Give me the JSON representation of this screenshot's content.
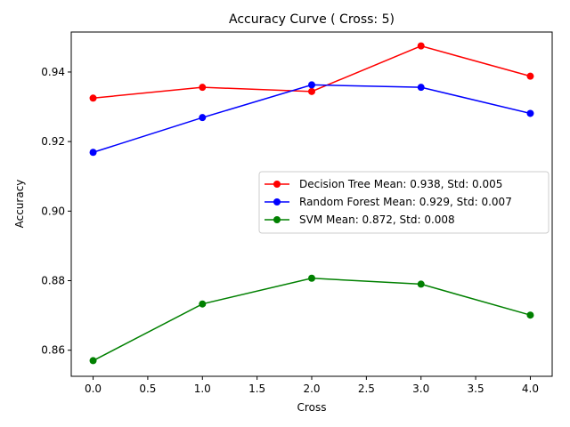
{
  "chart_data": {
    "type": "line",
    "title": "Accuracy Curve ( Cross: 5)",
    "xlabel": "Cross",
    "ylabel": "Accuracy",
    "x": [
      0,
      1,
      2,
      3,
      4
    ],
    "xlim": [
      -0.2,
      4.2
    ],
    "ylim": [
      0.8525,
      0.9515
    ],
    "xticks": [
      0.0,
      0.5,
      1.0,
      1.5,
      2.0,
      2.5,
      3.0,
      3.5,
      4.0
    ],
    "xtick_labels": [
      "0.0",
      "0.5",
      "1.0",
      "1.5",
      "2.0",
      "2.5",
      "3.0",
      "3.5",
      "4.0"
    ],
    "yticks": [
      0.86,
      0.88,
      0.9,
      0.92,
      0.94
    ],
    "ytick_labels": [
      "0.86",
      "0.88",
      "0.90",
      "0.92",
      "0.94"
    ],
    "grid": false,
    "legend_position": "center-right",
    "series": [
      {
        "name": "Decision Tree Mean: 0.938, Std: 0.005",
        "color": "#ff0000",
        "values": [
          0.9325,
          0.9356,
          0.9344,
          0.9475,
          0.9388
        ]
      },
      {
        "name": "Random Forest Mean: 0.929, Std: 0.007",
        "color": "#0000ff",
        "values": [
          0.9169,
          0.9269,
          0.9363,
          0.9356,
          0.9281
        ]
      },
      {
        "name": "SVM Mean: 0.872, Std: 0.008",
        "color": "#008000",
        "values": [
          0.857,
          0.8733,
          0.8807,
          0.879,
          0.8701
        ]
      }
    ]
  }
}
